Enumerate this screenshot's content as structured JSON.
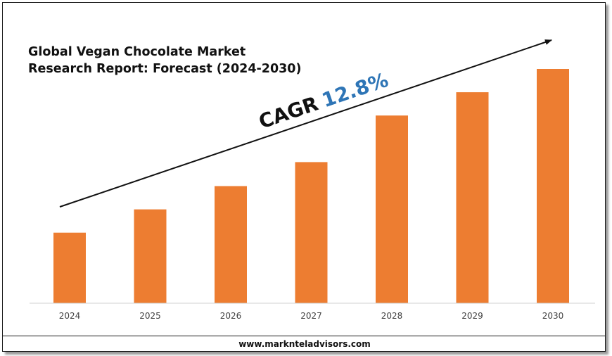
{
  "chart_data": {
    "type": "bar",
    "title": "Global Vegan Chocolate Market Research Report: Forecast (2024-2030)",
    "title_lines": [
      "Global Vegan Chocolate Market",
      "Research Report: Forecast (2024-2030)"
    ],
    "categories": [
      "2024",
      "2025",
      "2026",
      "2027",
      "2028",
      "2029",
      "2030"
    ],
    "values": [
      1.0,
      1.33,
      1.66,
      2.0,
      2.66,
      2.99,
      3.32
    ],
    "ylim": [
      0,
      3.32
    ],
    "grid": false,
    "legend": "none",
    "bar_color": "#ED7D31",
    "annotation": {
      "label": "CAGR",
      "value": "12.8%",
      "label_color": "#111111",
      "value_color": "#2E75B6"
    }
  },
  "footer": {
    "website": "www.marknteladvisors.com"
  }
}
